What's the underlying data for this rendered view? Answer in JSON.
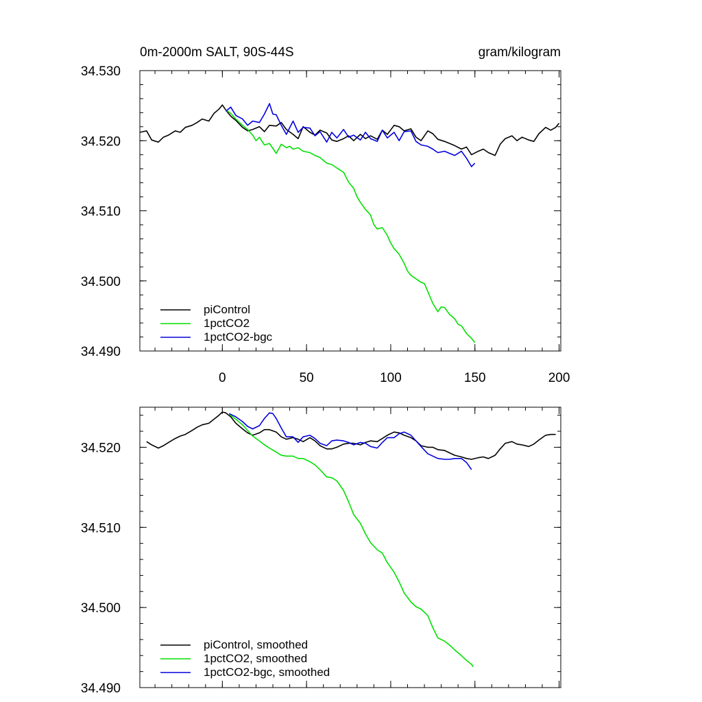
{
  "chart_data": [
    {
      "type": "line",
      "title_left": "0m-2000m SALT, 90S-44S",
      "title_right": "gram/kilogram",
      "xlim": [
        -49,
        201
      ],
      "ylim": [
        34.49,
        34.53
      ],
      "x_ticks": [
        0,
        50,
        100,
        150,
        200
      ],
      "x_tick_labels": [
        "0",
        "50",
        "100",
        "150",
        "200"
      ],
      "y_ticks": [
        34.49,
        34.5,
        34.51,
        34.52,
        34.53
      ],
      "y_tick_labels": [
        "34.490",
        "34.500",
        "34.510",
        "34.520",
        "34.530"
      ],
      "legend_position": "bottom-left",
      "series": [
        {
          "name": "piControl",
          "color": "#000000",
          "x": [
            -49,
            -45,
            -42,
            -38,
            -35,
            -32,
            -28,
            -25,
            -22,
            -18,
            -15,
            -12,
            -8,
            -5,
            -2,
            0,
            2,
            5,
            8,
            12,
            15,
            18,
            22,
            25,
            28,
            32,
            35,
            38,
            42,
            45,
            48,
            52,
            55,
            58,
            62,
            65,
            68,
            72,
            75,
            78,
            82,
            85,
            88,
            92,
            95,
            98,
            102,
            105,
            108,
            112,
            115,
            118,
            122,
            125,
            128,
            132,
            135,
            138,
            142,
            145,
            148,
            152,
            155,
            158,
            162,
            165,
            168,
            172,
            175,
            178,
            182,
            185,
            188,
            192,
            195,
            198,
            200
          ],
          "y": [
            34.5212,
            34.5214,
            34.5201,
            34.5198,
            34.5205,
            34.5208,
            34.5214,
            34.5212,
            34.5219,
            34.5222,
            34.5226,
            34.5231,
            34.5228,
            34.5239,
            34.5245,
            34.5251,
            34.5244,
            34.5235,
            34.5229,
            34.5219,
            34.5214,
            34.5216,
            34.522,
            34.5213,
            34.5222,
            34.5221,
            34.5226,
            34.5216,
            34.5209,
            34.5203,
            34.522,
            34.5212,
            34.5208,
            34.5215,
            34.5211,
            34.5201,
            34.5199,
            34.5203,
            34.5207,
            34.52,
            34.5209,
            34.5203,
            34.5207,
            34.5202,
            34.5215,
            34.5209,
            34.5222,
            34.522,
            34.5214,
            34.5217,
            34.5205,
            34.52,
            34.5214,
            34.521,
            34.5202,
            34.5199,
            34.5196,
            34.5193,
            34.5188,
            34.5191,
            34.518,
            34.5185,
            34.5188,
            34.5183,
            34.5179,
            34.5195,
            34.5203,
            34.5207,
            34.52,
            34.5205,
            34.5201,
            34.5199,
            34.521,
            34.5219,
            34.5215,
            34.5219,
            34.5225
          ]
        },
        {
          "name": "1pctCO2",
          "color": "#00e000",
          "x": [
            2,
            5,
            8,
            12,
            15,
            18,
            20,
            22,
            25,
            28,
            30,
            32,
            35,
            38,
            40,
            42,
            45,
            48,
            52,
            55,
            58,
            62,
            65,
            68,
            72,
            75,
            78,
            80,
            82,
            85,
            88,
            90,
            92,
            95,
            98,
            100,
            102,
            105,
            108,
            110,
            112,
            115,
            118,
            120,
            122,
            125,
            128,
            130,
            132,
            135,
            138,
            140,
            142,
            145,
            148,
            150
          ],
          "y": [
            34.5244,
            34.5239,
            34.5231,
            34.5222,
            34.5216,
            34.5208,
            34.52,
            34.5205,
            34.5194,
            34.5196,
            34.5189,
            34.5182,
            34.5195,
            34.519,
            34.5192,
            34.5188,
            34.519,
            34.5185,
            34.5183,
            34.5179,
            34.5176,
            34.5168,
            34.5166,
            34.5161,
            34.5155,
            34.5141,
            34.5132,
            34.512,
            34.5112,
            34.5102,
            34.5094,
            34.508,
            34.5074,
            34.5076,
            34.5065,
            34.5054,
            34.5046,
            34.5038,
            34.5025,
            34.5014,
            34.5008,
            34.5003,
            34.4998,
            34.4996,
            34.4985,
            34.4968,
            34.4956,
            34.4963,
            34.4962,
            34.4952,
            34.4946,
            34.4938,
            34.4936,
            34.4925,
            34.4918,
            34.4912
          ]
        },
        {
          "name": "1pctCO2-bgc",
          "color": "#0000dd",
          "x": [
            2,
            5,
            8,
            12,
            15,
            18,
            22,
            25,
            28,
            30,
            32,
            35,
            38,
            42,
            45,
            48,
            52,
            55,
            58,
            62,
            65,
            68,
            72,
            75,
            78,
            82,
            85,
            88,
            92,
            95,
            98,
            102,
            105,
            108,
            112,
            115,
            118,
            122,
            125,
            128,
            132,
            135,
            138,
            142,
            145,
            148,
            150
          ],
          "y": [
            34.5242,
            34.5248,
            34.5236,
            34.5231,
            34.5222,
            34.5228,
            34.5226,
            34.5238,
            34.5253,
            34.5238,
            34.5237,
            34.5222,
            34.5209,
            34.5228,
            34.5212,
            34.5219,
            34.5218,
            34.5207,
            34.5213,
            34.5198,
            34.5212,
            34.5204,
            34.5216,
            34.5205,
            34.5208,
            34.5201,
            34.5212,
            34.5203,
            34.5199,
            34.5215,
            34.5204,
            34.5212,
            34.52,
            34.5213,
            34.5214,
            34.5199,
            34.5194,
            34.5192,
            34.5188,
            34.5183,
            34.5185,
            34.5182,
            34.5179,
            34.5185,
            34.5175,
            34.5163,
            34.5168
          ]
        }
      ]
    },
    {
      "type": "line",
      "xlim": [
        -49,
        201
      ],
      "ylim": [
        34.49,
        34.525
      ],
      "x_ticks": [
        0,
        50,
        100,
        150,
        200
      ],
      "y_ticks": [
        34.49,
        34.5,
        34.51,
        34.52
      ],
      "y_tick_labels": [
        "34.490",
        "34.500",
        "34.510",
        "34.520"
      ],
      "legend_position": "bottom-left",
      "series": [
        {
          "name": "piControl, smoothed",
          "color": "#000000",
          "x": [
            -45,
            -42,
            -38,
            -35,
            -32,
            -28,
            -25,
            -22,
            -18,
            -15,
            -12,
            -8,
            -5,
            -2,
            0,
            2,
            5,
            8,
            12,
            15,
            18,
            22,
            25,
            28,
            32,
            35,
            38,
            42,
            45,
            48,
            52,
            55,
            58,
            62,
            65,
            68,
            72,
            75,
            78,
            82,
            85,
            88,
            92,
            95,
            98,
            102,
            105,
            108,
            112,
            115,
            118,
            122,
            125,
            128,
            132,
            135,
            138,
            142,
            145,
            148,
            152,
            155,
            158,
            162,
            165,
            168,
            172,
            175,
            178,
            182,
            185,
            188,
            192,
            195,
            198
          ],
          "y": [
            34.5207,
            34.5203,
            34.5199,
            34.5202,
            34.5206,
            34.5211,
            34.5214,
            34.5216,
            34.5221,
            34.5225,
            34.5228,
            34.523,
            34.5235,
            34.524,
            34.5244,
            34.5243,
            34.5238,
            34.523,
            34.5223,
            34.5218,
            34.5215,
            34.5218,
            34.5222,
            34.5222,
            34.5219,
            34.5213,
            34.521,
            34.5212,
            34.521,
            34.5207,
            34.5212,
            34.5208,
            34.5202,
            34.5198,
            34.5198,
            34.52,
            34.5204,
            34.5205,
            34.5205,
            34.5203,
            34.5206,
            34.5208,
            34.5207,
            34.5211,
            34.5215,
            34.5219,
            34.5218,
            34.5215,
            34.5212,
            34.5208,
            34.5202,
            34.52,
            34.52,
            34.5197,
            34.5196,
            34.5193,
            34.519,
            34.5188,
            34.5186,
            34.5185,
            34.5187,
            34.5188,
            34.5186,
            34.519,
            34.5198,
            34.5205,
            34.5207,
            34.5204,
            34.5203,
            34.5201,
            34.5204,
            34.5209,
            34.5215,
            34.5216,
            34.5216
          ]
        },
        {
          "name": "1pctCO2, smoothed",
          "color": "#00e000",
          "x": [
            4,
            8,
            12,
            15,
            18,
            22,
            25,
            28,
            32,
            35,
            38,
            42,
            45,
            48,
            52,
            55,
            58,
            62,
            65,
            68,
            72,
            75,
            78,
            82,
            85,
            88,
            92,
            95,
            98,
            102,
            105,
            108,
            112,
            115,
            118,
            122,
            125,
            128,
            132,
            135,
            138,
            142,
            145,
            148,
            149
          ],
          "y": [
            34.5241,
            34.5235,
            34.5228,
            34.5221,
            34.5214,
            34.5208,
            34.5203,
            34.5199,
            34.5194,
            34.519,
            34.5189,
            34.5189,
            34.5186,
            34.5186,
            34.5182,
            34.5178,
            34.5172,
            34.5163,
            34.5162,
            34.5158,
            34.5146,
            34.5132,
            34.5116,
            34.5105,
            34.5092,
            34.5081,
            34.5072,
            34.5068,
            34.5056,
            34.5044,
            34.5032,
            34.5018,
            34.5007,
            34.5001,
            34.4998,
            34.499,
            34.4975,
            34.4962,
            34.4958,
            34.4953,
            34.4947,
            34.494,
            34.4934,
            34.4929,
            34.4926
          ]
        },
        {
          "name": "1pctCO2-bgc, smoothed",
          "color": "#0000dd",
          "x": [
            4,
            8,
            12,
            15,
            18,
            22,
            25,
            28,
            30,
            32,
            35,
            38,
            42,
            45,
            48,
            52,
            55,
            58,
            62,
            65,
            68,
            72,
            75,
            78,
            82,
            85,
            88,
            92,
            95,
            98,
            102,
            105,
            108,
            112,
            115,
            118,
            122,
            125,
            128,
            132,
            135,
            138,
            142,
            145,
            148
          ],
          "y": [
            34.5242,
            34.5238,
            34.5232,
            34.5226,
            34.5223,
            34.5227,
            34.5236,
            34.5243,
            34.5242,
            34.5236,
            34.5224,
            34.5213,
            34.5213,
            34.5206,
            34.5213,
            34.5215,
            34.5211,
            34.5205,
            34.5202,
            34.5208,
            34.5209,
            34.5208,
            34.5206,
            34.5203,
            34.5206,
            34.5205,
            34.5201,
            34.5199,
            34.5206,
            34.5212,
            34.5212,
            34.5217,
            34.5219,
            34.5215,
            34.5208,
            34.5201,
            34.5192,
            34.5189,
            34.5186,
            34.5185,
            34.5185,
            34.5186,
            34.5186,
            34.5181,
            34.5172
          ]
        }
      ]
    }
  ]
}
